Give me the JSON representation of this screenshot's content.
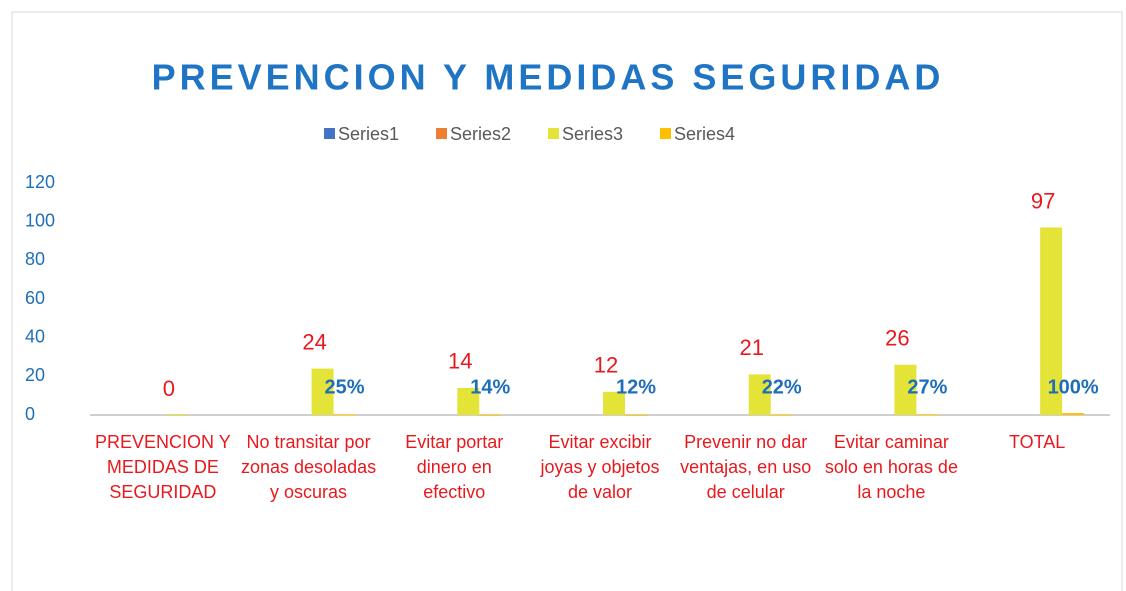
{
  "chart_data": {
    "type": "bar",
    "title": "PREVENCION Y MEDIDAS SEGURIDAD",
    "categories": [
      "PREVENCION Y MEDIDAS DE SEGURIDAD",
      "No transitar por zonas desoladas y oscuras",
      "Evitar portar dinero en efectivo",
      "Evitar excibir joyas y objetos de valor",
      "Prevenir no dar ventajas, en uso de celular",
      "Evitar caminar solo en horas de la noche",
      "TOTAL"
    ],
    "series": [
      {
        "name": "Series1",
        "color": "#4472c4",
        "values": [
          null,
          null,
          null,
          null,
          null,
          null,
          null
        ]
      },
      {
        "name": "Series2",
        "color": "#ed7d31",
        "values": [
          null,
          null,
          null,
          null,
          null,
          null,
          null
        ]
      },
      {
        "name": "Series3",
        "color": "#e3e338",
        "values": [
          0,
          24,
          14,
          12,
          21,
          26,
          97
        ]
      },
      {
        "name": "Series4",
        "color": "#ffc000",
        "values": [
          null,
          0.25,
          0.14,
          0.12,
          0.22,
          0.27,
          1
        ],
        "value_labels": [
          null,
          "25%",
          "14%",
          "12%",
          "22%",
          "27%",
          "100%"
        ]
      }
    ],
    "ylim": [
      0,
      120
    ],
    "yticks": [
      0,
      20,
      40,
      60,
      80,
      100,
      120
    ],
    "legend": "top",
    "grid": false
  }
}
